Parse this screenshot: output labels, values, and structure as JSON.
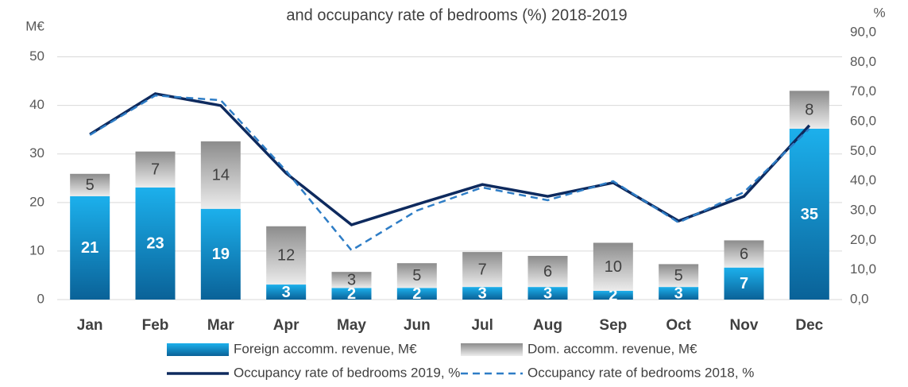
{
  "chart_data": {
    "type": "bar",
    "title": "and occupancy rate of bedrooms (%) 2018-2019",
    "ylabel": "M€",
    "y2label": "%",
    "categories": [
      "Jan",
      "Feb",
      "Mar",
      "Apr",
      "May",
      "Jun",
      "Jul",
      "Aug",
      "Sep",
      "Oct",
      "Nov",
      "Dec"
    ],
    "ylim": [
      0,
      55
    ],
    "yticks": [
      0,
      10,
      20,
      30,
      40,
      50
    ],
    "y2lim": [
      0,
      90
    ],
    "y2ticks": [
      {
        "value": 0,
        "label": "0,0"
      },
      {
        "value": 10,
        "label": "10,0"
      },
      {
        "value": 20,
        "label": "20,0"
      },
      {
        "value": 30,
        "label": "30,0"
      },
      {
        "value": 40,
        "label": "40,0"
      },
      {
        "value": 50,
        "label": "50,0"
      },
      {
        "value": 60,
        "label": "60,0"
      },
      {
        "value": 70,
        "label": "70,0"
      },
      {
        "value": 80,
        "label": "80,0"
      },
      {
        "value": 90,
        "label": "90,0"
      }
    ],
    "grid": true,
    "legend": "bottom",
    "series": [
      {
        "name": "Foreign accomm. revenue, M€",
        "type": "bar",
        "color": "#1cb0ec",
        "axis": "y",
        "values": [
          21.3,
          23.1,
          18.7,
          3.1,
          2.4,
          2.4,
          2.6,
          2.6,
          1.8,
          2.6,
          6.6,
          35.2
        ],
        "value_labels": [
          "21",
          "23",
          "19",
          "3",
          "2",
          "2",
          "3",
          "3",
          "2",
          "3",
          "7",
          "35"
        ]
      },
      {
        "name": "Dom. accomm. revenue, M€",
        "type": "bar",
        "color": "#8c8c8c",
        "axis": "y",
        "values": [
          4.6,
          7.4,
          13.9,
          12.0,
          3.3,
          5.1,
          7.2,
          6.4,
          9.9,
          4.7,
          5.6,
          7.8
        ],
        "value_labels": [
          "5",
          "7",
          "14",
          "12",
          "3",
          "5",
          "7",
          "6",
          "10",
          "5",
          "6",
          "8"
        ]
      },
      {
        "name": "Occupancy rate of bedrooms 2019, %",
        "type": "line",
        "color": "#0e2a5e",
        "axis": "y2",
        "dash": false,
        "values": [
          55.7,
          69.4,
          65.4,
          42.6,
          25.2,
          32.1,
          38.8,
          34.8,
          39.4,
          26.5,
          34.8,
          58.7
        ]
      },
      {
        "name": "Occupancy rate of bedrooms 2018, %",
        "type": "line",
        "color": "#2e7dc6",
        "axis": "y2",
        "dash": true,
        "values": [
          55.5,
          68.8,
          67.2,
          43.4,
          16.6,
          30.0,
          37.8,
          33.5,
          39.9,
          26.0,
          36.2,
          57.6
        ]
      }
    ]
  }
}
